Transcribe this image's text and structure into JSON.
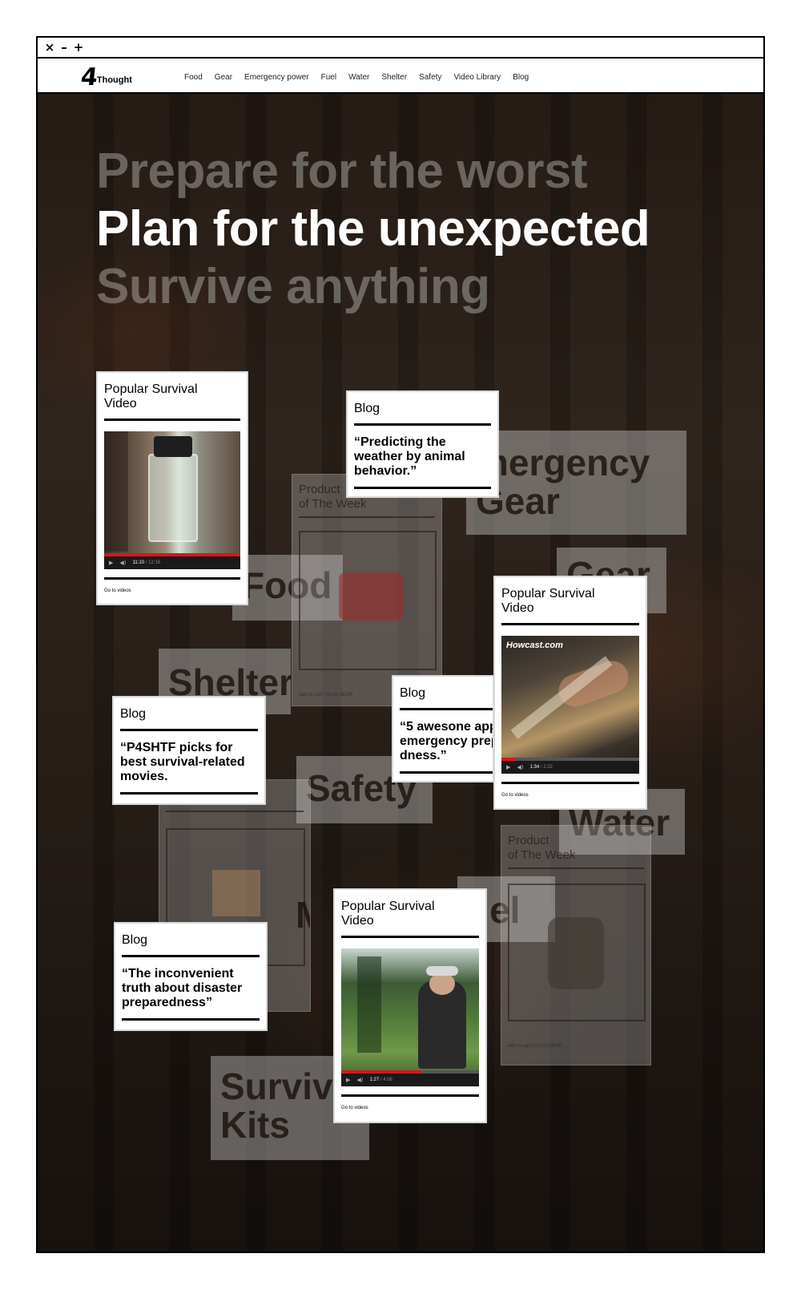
{
  "window": {
    "close": "×",
    "minimize": "–",
    "maximize": "+"
  },
  "brand": {
    "mark": "4",
    "name": "Thought"
  },
  "nav": {
    "items": [
      "Food",
      "Gear",
      "Emergency power",
      "Fuel",
      "Water",
      "Shelter",
      "Safety",
      "Video Library",
      "Blog"
    ]
  },
  "hero": {
    "lines": [
      "Prepare for the worst",
      "Plan for the unexpected",
      "Survive anything"
    ]
  },
  "categories": {
    "emergency_gear": [
      "mergency",
      "Gear"
    ],
    "gear": "Gear",
    "food": "Food",
    "shelter": "Shelter",
    "safety": "Safety",
    "water": "Water",
    "fuel": "uel",
    "survival_kits": [
      "Surviva",
      "Kits"
    ],
    "m_fragment": "M"
  },
  "product_of_week": {
    "title": [
      "Product",
      "of The Week"
    ],
    "add_to_cart": "Add to cart",
    "separator": "/",
    "go_to_gear": "Go to GEAR",
    "fragment_title": "of The Week"
  },
  "cards": {
    "video1": {
      "title": [
        "Popular Survival",
        "Video"
      ],
      "time": "11:10",
      "duration": "12:16",
      "progress": 1.0,
      "link": "Go to videos"
    },
    "blog1": {
      "title": "Blog",
      "quote": [
        "“Predicting the",
        "weather by animal",
        "behavior.”"
      ]
    },
    "video2": {
      "title": [
        "Popular Survival",
        "Video"
      ],
      "watermark": "Howcast.com",
      "time": "1:34",
      "duration": "2:22",
      "progress": 0.1,
      "link": "Go to videos"
    },
    "blog2": {
      "title": "Blog",
      "quote": [
        "“5 awesone app",
        "emergency prep",
        "dness.”"
      ]
    },
    "blog3": {
      "title": "Blog",
      "quote": [
        "“P4SHTF picks for",
        "best survival-related",
        "movies."
      ]
    },
    "blog4": {
      "title": "Blog",
      "quote": [
        "“The inconvenient",
        "truth about disaster",
        "preparedness”"
      ]
    },
    "video3": {
      "title": [
        "Popular Survival",
        "Video"
      ],
      "time": "1:27",
      "duration": "4:06",
      "progress": 0.58,
      "link": "Go to videos"
    }
  },
  "colors": {
    "accent_red": "#d9161c",
    "background_dark": "#3a2a20",
    "card_bg": "#ffffff"
  }
}
